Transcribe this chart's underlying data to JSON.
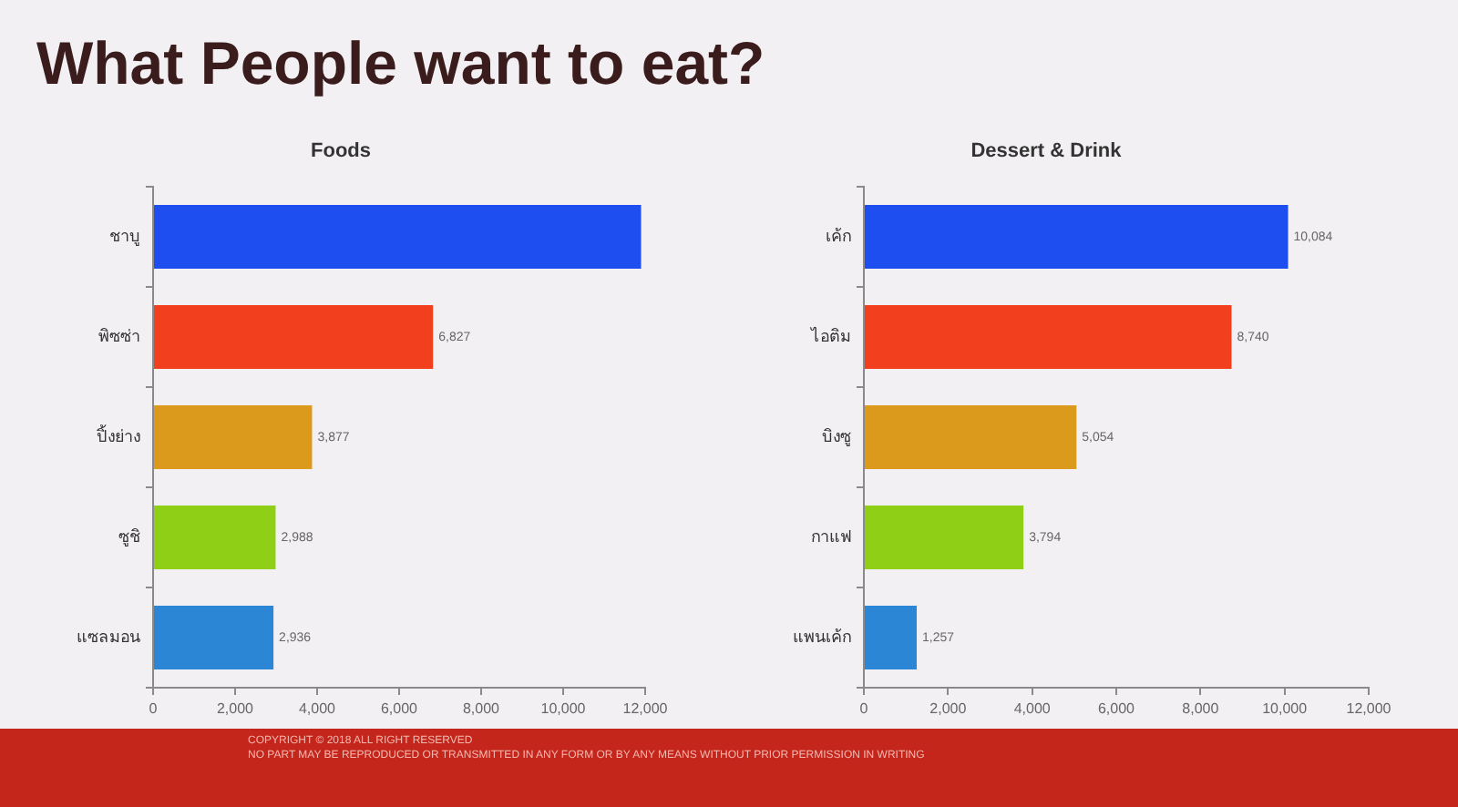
{
  "chart_data": [
    {
      "type": "bar",
      "orientation": "horizontal",
      "title": "What People want to eat?",
      "subtitle": "Foods",
      "categories": [
        "ชาบู",
        "พิซซ่า",
        "ปิ้งย่าง",
        "ซูชิ",
        "แซลมอน"
      ],
      "values": [
        11900,
        6827,
        3877,
        2988,
        2936
      ],
      "value_labels": [
        null,
        "6,827",
        "3,877",
        "2,988",
        "2,936"
      ],
      "colors": [
        "#1f4ef0",
        "#f2401e",
        "#dc9a1c",
        "#8fd016",
        "#2c86d6"
      ],
      "xlim": [
        0,
        12000
      ],
      "xticks": [
        0,
        {
          "value": 2000,
          "label": "2,000"
        },
        {
          "value": 4000,
          "label": "4,000"
        },
        {
          "value": 6000,
          "label": "6,000"
        },
        {
          "value": 8000,
          "label": "8,000"
        },
        {
          "value": 10000,
          "label": "10,000"
        },
        {
          "value": 12000,
          "label": "12,000"
        }
      ]
    },
    {
      "type": "bar",
      "orientation": "horizontal",
      "title": "Dessert & Drink",
      "categories": [
        "เค้ก",
        "ไอติม",
        "บิงซู",
        "กาแฟ",
        "แพนเค้ก"
      ],
      "values": [
        10084,
        8740,
        5054,
        3794,
        1257
      ],
      "value_labels": [
        "10,084",
        "8,740",
        "5,054",
        "3,794",
        "1,257"
      ],
      "colors": [
        "#1f4ef0",
        "#f2401e",
        "#dc9a1c",
        "#8fd016",
        "#2c86d6"
      ],
      "xlim": [
        0,
        12000
      ],
      "xticks": [
        0,
        {
          "value": 2000,
          "label": "2,000"
        },
        {
          "value": 4000,
          "label": "4,000"
        },
        {
          "value": 6000,
          "label": "6,000"
        },
        {
          "value": 8000,
          "label": "8,000"
        },
        {
          "value": 10000,
          "label": "10,000"
        },
        {
          "value": 12000,
          "label": "12,000"
        }
      ],
      "annotations": [
        "COPYRIGHT © 2018 ALL RIGHT RESERVED",
        "NO PART MAY BE REPRODUCED OR TRANSMITTED IN ANY FORM OR BY ANY MEANS WITHOUT PRIOR PERMISSION IN WRITING"
      ]
    }
  ]
}
